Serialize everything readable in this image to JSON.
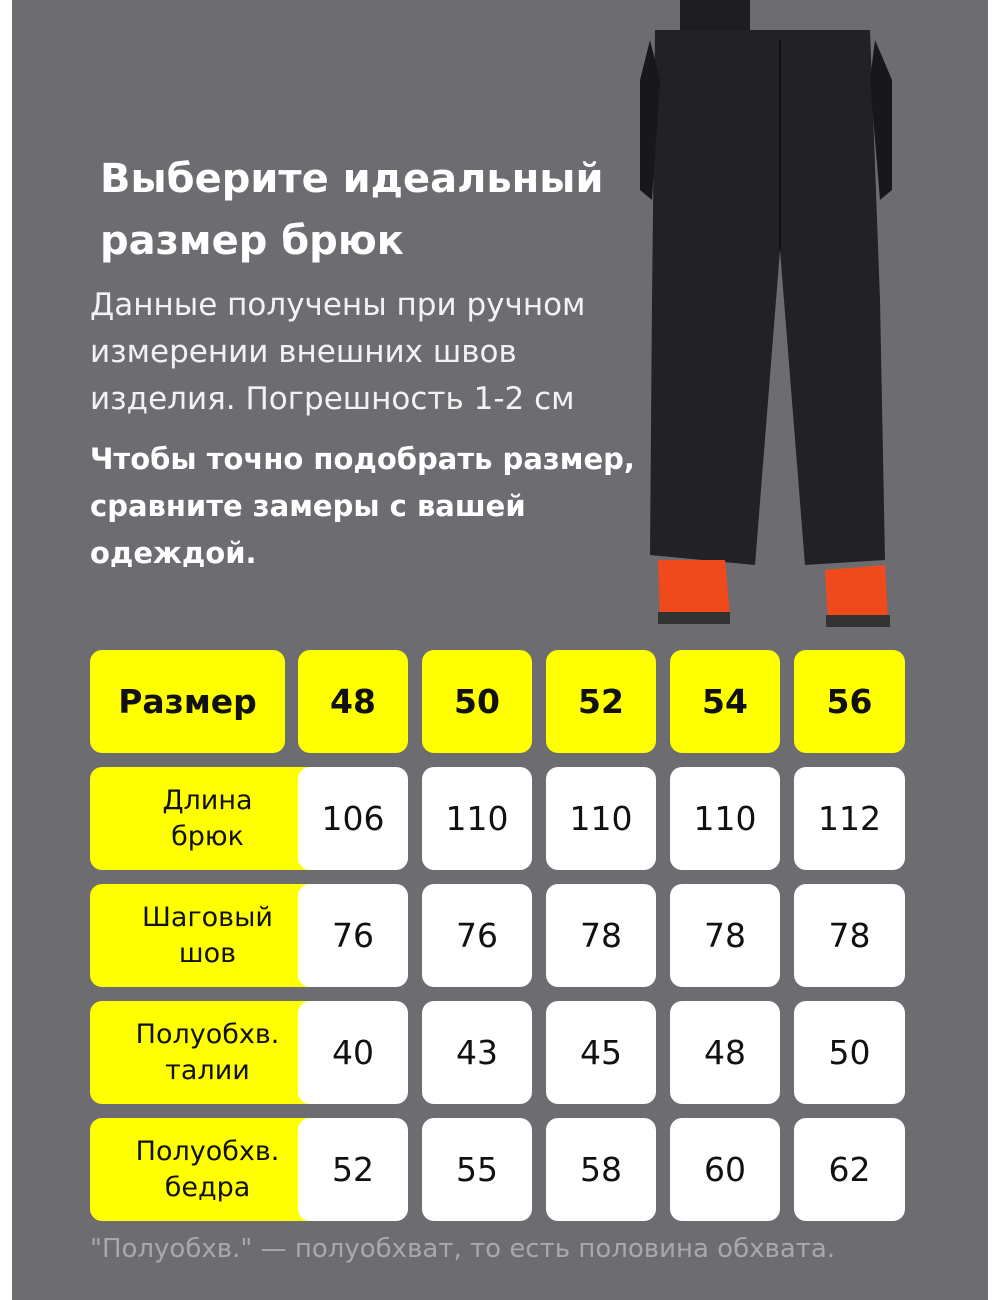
{
  "heading": {
    "title": "Выберите идеальный размер брюк",
    "subtitle": "Данные получены при ручном измерении внешних швов изделия. Погрешность 1-2 см",
    "instruction": "Чтобы точно подобрать размер, сравните замеры с вашей одеждой."
  },
  "colors": {
    "background": "#6d6c71",
    "accent": "#ffff00",
    "cell": "#ffffff"
  },
  "table": {
    "header_label": "Размер",
    "sizes": [
      "48",
      "50",
      "52",
      "54",
      "56"
    ],
    "rows": [
      {
        "label": "Длина брюк",
        "values": [
          "106",
          "110",
          "110",
          "110",
          "112"
        ]
      },
      {
        "label": "Шаговый шов",
        "values": [
          "76",
          "76",
          "78",
          "78",
          "78"
        ]
      },
      {
        "label": "Полуобхв. талии",
        "values": [
          "40",
          "43",
          "45",
          "48",
          "50"
        ]
      },
      {
        "label": "Полуобхв. бедра",
        "values": [
          "52",
          "55",
          "58",
          "60",
          "62"
        ]
      }
    ]
  },
  "footnote": "\"Полуобхв.\" — полуобхват, то есть половина обхвата."
}
